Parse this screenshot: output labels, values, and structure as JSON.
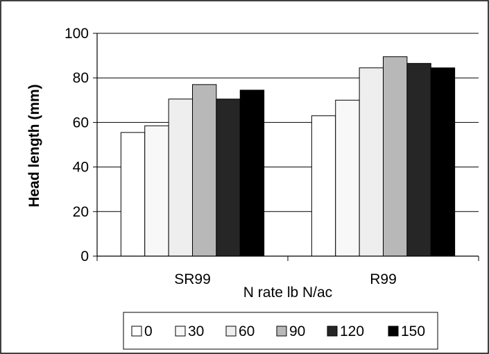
{
  "chart_data": {
    "type": "bar",
    "title": "",
    "xlabel": "N rate lb N/ac",
    "ylabel": "Head length (mm)",
    "ylim": [
      0,
      100
    ],
    "yticks": [
      0,
      20,
      40,
      60,
      80,
      100
    ],
    "categories": [
      "SR99",
      "R99"
    ],
    "grid": "horizontal major gridlines",
    "legend_position": "bottom",
    "series": [
      {
        "name": "0",
        "values": [
          55.5,
          63.0
        ],
        "color": "#ffffff"
      },
      {
        "name": "30",
        "values": [
          58.5,
          70.0
        ],
        "color": "#f8f8f8"
      },
      {
        "name": "60",
        "values": [
          70.5,
          84.5
        ],
        "color": "#eeeeee"
      },
      {
        "name": "90",
        "values": [
          77.0,
          89.5
        ],
        "color": "#b8b8b8"
      },
      {
        "name": "120",
        "values": [
          70.5,
          86.5
        ],
        "color": "#262626"
      },
      {
        "name": "150",
        "values": [
          74.5,
          84.5
        ],
        "color": "#000000"
      }
    ]
  }
}
